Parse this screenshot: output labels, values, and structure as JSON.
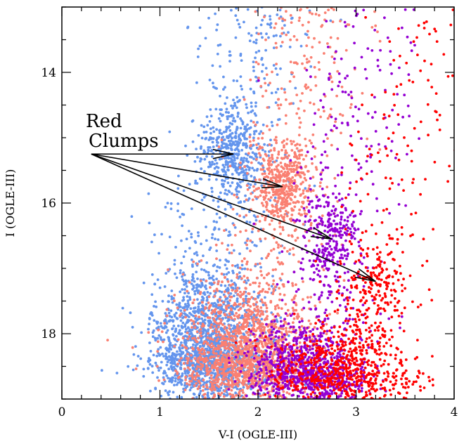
{
  "chart_data": {
    "type": "scatter",
    "title": "",
    "xlabel": "V-I (OGLE-III)",
    "ylabel": "I (OGLE-III)",
    "xlim": [
      0,
      4
    ],
    "ylim": [
      19,
      13
    ],
    "y_inverted": true,
    "x_ticks": [
      0,
      1,
      2,
      3,
      4
    ],
    "y_ticks": [
      14,
      16,
      18
    ],
    "grid": false,
    "legend": "none",
    "series": [
      {
        "color": "#6495ED",
        "red_clump": [
          1.75,
          15.25
        ],
        "clump_spread": [
          0.15,
          0.35
        ],
        "main_cloud": [
          1.5,
          18.3
        ],
        "cloud_spread": [
          0.3,
          0.6
        ],
        "count": 2600
      },
      {
        "color": "#FA8072",
        "red_clump": [
          2.25,
          15.75
        ],
        "clump_spread": [
          0.15,
          0.35
        ],
        "main_cloud": [
          1.9,
          18.4
        ],
        "cloud_spread": [
          0.35,
          0.55
        ],
        "count": 2400
      },
      {
        "color": "#9400D3",
        "red_clump": [
          2.75,
          16.55
        ],
        "clump_spread": [
          0.15,
          0.35
        ],
        "main_cloud": [
          2.5,
          18.6
        ],
        "cloud_spread": [
          0.3,
          0.4
        ],
        "count": 1400
      },
      {
        "color": "#FF0000",
        "red_clump": [
          3.2,
          17.2
        ],
        "clump_spread": [
          0.17,
          0.35
        ],
        "main_cloud": [
          2.9,
          18.6
        ],
        "cloud_spread": [
          0.35,
          0.4
        ],
        "count": 1000
      }
    ],
    "annotation": {
      "lines": [
        "Red",
        "Clumps"
      ],
      "arrow_origin": [
        0.3,
        15.25
      ],
      "arrow_targets": [
        [
          1.75,
          15.25
        ],
        [
          2.25,
          15.75
        ],
        [
          2.75,
          16.55
        ],
        [
          3.2,
          17.2
        ]
      ]
    }
  }
}
